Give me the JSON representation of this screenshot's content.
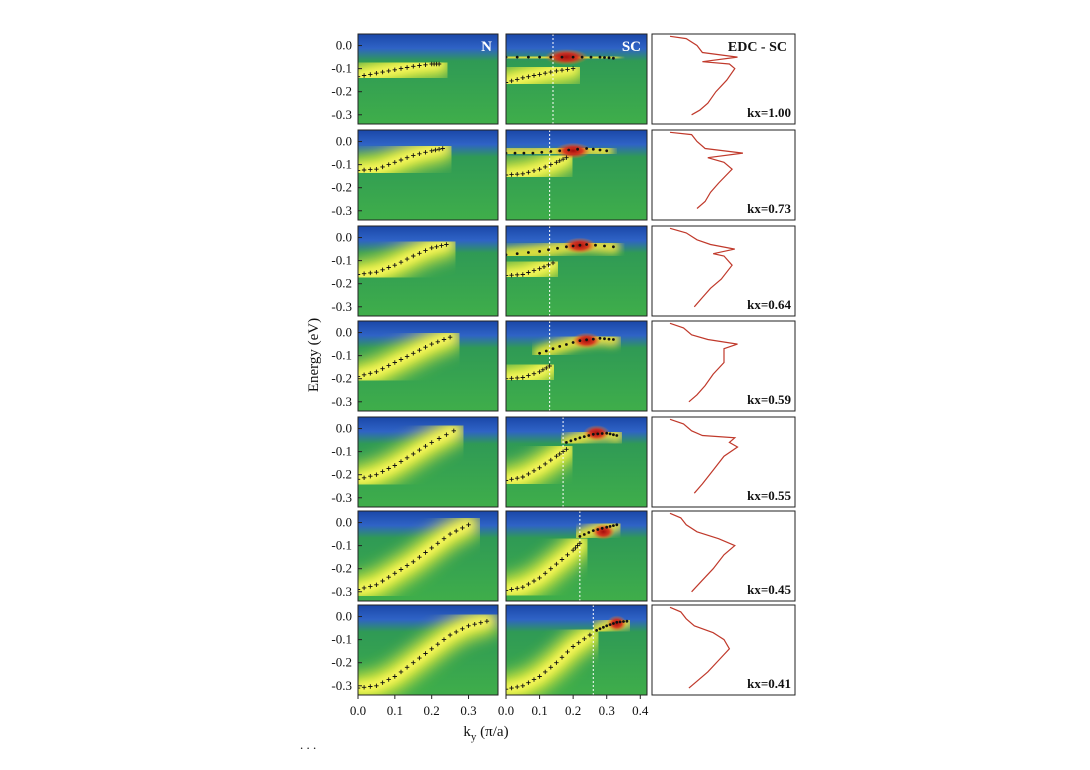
{
  "figure": {
    "ylabel": "Energy (eV)",
    "xlabel_main": "k",
    "xlabel_sub": "y",
    "xlabel_units": " (π/a)",
    "footnote": ". . ."
  },
  "colors": {
    "background_blue": "#1f4fb0",
    "mid_green": "#3ea84a",
    "intensity_yellow": "#f4f02c",
    "peak_red": "#c01212",
    "edc_line": "#c0392b",
    "marker": "#111111",
    "cut_line": "#ffffff"
  },
  "chart_data": {
    "type": "heatmap",
    "columns": [
      {
        "tag": "N",
        "xrange": [
          0.0,
          0.38
        ],
        "xticks": [
          "0.0",
          "0.1",
          "0.2",
          "0.3"
        ]
      },
      {
        "tag": "SC",
        "xrange": [
          0.0,
          0.42
        ],
        "xticks": [
          "0.0",
          "0.1",
          "0.2",
          "0.3",
          "0.4"
        ]
      },
      {
        "tag": "EDC - SC"
      }
    ],
    "yrange": [
      -0.34,
      0.05
    ],
    "yticks": [
      "0.0",
      "-0.1",
      "-0.2",
      "-0.3"
    ],
    "rows": [
      {
        "kx": "kx=1.00",
        "n_dispersion": [
          [
            0.0,
            -0.135
          ],
          [
            0.05,
            -0.12
          ],
          [
            0.1,
            -0.105
          ],
          [
            0.15,
            -0.09
          ],
          [
            0.2,
            -0.08
          ],
          [
            0.22,
            -0.08
          ]
        ],
        "sc_upper": [
          [
            0.0,
            -0.05
          ],
          [
            0.1,
            -0.05
          ],
          [
            0.2,
            -0.05
          ],
          [
            0.28,
            -0.05
          ],
          [
            0.32,
            -0.055
          ]
        ],
        "sc_lower": [
          [
            0.0,
            -0.16
          ],
          [
            0.05,
            -0.14
          ],
          [
            0.1,
            -0.125
          ],
          [
            0.15,
            -0.11
          ],
          [
            0.2,
            -0.1
          ]
        ],
        "cut_ky": 0.14,
        "peak": [
          0.18,
          -0.05,
          0.13
        ],
        "edc": [
          [
            0.0,
            0.04
          ],
          [
            0.06,
            0.03
          ],
          [
            0.1,
            0.0
          ],
          [
            0.12,
            -0.03
          ],
          [
            0.25,
            -0.05
          ],
          [
            0.12,
            -0.07
          ],
          [
            0.22,
            -0.08
          ],
          [
            0.24,
            -0.1
          ],
          [
            0.21,
            -0.15
          ],
          [
            0.17,
            -0.2
          ],
          [
            0.14,
            -0.25
          ],
          [
            0.11,
            -0.28
          ],
          [
            0.08,
            -0.3
          ]
        ]
      },
      {
        "kx": "kx=0.73",
        "n_dispersion": [
          [
            0.0,
            -0.125
          ],
          [
            0.05,
            -0.12
          ],
          [
            0.1,
            -0.09
          ],
          [
            0.15,
            -0.06
          ],
          [
            0.2,
            -0.04
          ],
          [
            0.23,
            -0.03
          ]
        ],
        "sc_upper": [
          [
            0.0,
            -0.05
          ],
          [
            0.08,
            -0.05
          ],
          [
            0.16,
            -0.04
          ],
          [
            0.24,
            -0.03
          ],
          [
            0.3,
            -0.04
          ]
        ],
        "sc_lower": [
          [
            0.0,
            -0.145
          ],
          [
            0.05,
            -0.14
          ],
          [
            0.1,
            -0.12
          ],
          [
            0.15,
            -0.09
          ],
          [
            0.18,
            -0.07
          ]
        ],
        "cut_ky": 0.13,
        "peak": [
          0.2,
          -0.04,
          0.11
        ],
        "edc": [
          [
            0.0,
            0.04
          ],
          [
            0.08,
            0.03
          ],
          [
            0.1,
            0.0
          ],
          [
            0.13,
            -0.03
          ],
          [
            0.27,
            -0.05
          ],
          [
            0.14,
            -0.07
          ],
          [
            0.2,
            -0.09
          ],
          [
            0.23,
            -0.12
          ],
          [
            0.18,
            -0.18
          ],
          [
            0.15,
            -0.22
          ],
          [
            0.13,
            -0.26
          ],
          [
            0.1,
            -0.29
          ]
        ]
      },
      {
        "kx": "kx=0.64",
        "n_dispersion": [
          [
            0.0,
            -0.16
          ],
          [
            0.05,
            -0.15
          ],
          [
            0.1,
            -0.12
          ],
          [
            0.15,
            -0.08
          ],
          [
            0.2,
            -0.045
          ],
          [
            0.24,
            -0.03
          ]
        ],
        "sc_upper": [
          [
            0.0,
            -0.075
          ],
          [
            0.1,
            -0.06
          ],
          [
            0.18,
            -0.04
          ],
          [
            0.24,
            -0.03
          ],
          [
            0.32,
            -0.04
          ]
        ],
        "sc_lower": [
          [
            0.0,
            -0.165
          ],
          [
            0.05,
            -0.16
          ],
          [
            0.1,
            -0.135
          ],
          [
            0.14,
            -0.11
          ]
        ],
        "cut_ky": 0.13,
        "peak": [
          0.22,
          -0.035,
          0.1
        ],
        "edc": [
          [
            0.0,
            0.04
          ],
          [
            0.06,
            0.02
          ],
          [
            0.1,
            -0.01
          ],
          [
            0.15,
            -0.03
          ],
          [
            0.24,
            -0.05
          ],
          [
            0.16,
            -0.07
          ],
          [
            0.2,
            -0.08
          ],
          [
            0.23,
            -0.12
          ],
          [
            0.19,
            -0.18
          ],
          [
            0.15,
            -0.22
          ],
          [
            0.12,
            -0.26
          ],
          [
            0.09,
            -0.3
          ]
        ]
      },
      {
        "kx": "kx=0.59",
        "n_dispersion": [
          [
            0.0,
            -0.19
          ],
          [
            0.05,
            -0.17
          ],
          [
            0.1,
            -0.13
          ],
          [
            0.15,
            -0.09
          ],
          [
            0.2,
            -0.05
          ],
          [
            0.25,
            -0.02
          ]
        ],
        "sc_upper": [
          [
            0.1,
            -0.09
          ],
          [
            0.16,
            -0.06
          ],
          [
            0.22,
            -0.035
          ],
          [
            0.28,
            -0.025
          ],
          [
            0.32,
            -0.03
          ]
        ],
        "sc_lower": [
          [
            0.0,
            -0.2
          ],
          [
            0.05,
            -0.195
          ],
          [
            0.1,
            -0.17
          ],
          [
            0.13,
            -0.145
          ]
        ],
        "cut_ky": 0.13,
        "peak": [
          0.24,
          -0.035,
          0.09
        ],
        "edc": [
          [
            0.0,
            0.04
          ],
          [
            0.05,
            0.02
          ],
          [
            0.08,
            -0.01
          ],
          [
            0.14,
            -0.03
          ],
          [
            0.25,
            -0.05
          ],
          [
            0.2,
            -0.07
          ],
          [
            0.2,
            -0.1
          ],
          [
            0.2,
            -0.13
          ],
          [
            0.16,
            -0.18
          ],
          [
            0.13,
            -0.23
          ],
          [
            0.1,
            -0.27
          ],
          [
            0.07,
            -0.3
          ]
        ]
      },
      {
        "kx": "kx=0.55",
        "n_dispersion": [
          [
            0.0,
            -0.22
          ],
          [
            0.05,
            -0.2
          ],
          [
            0.1,
            -0.16
          ],
          [
            0.15,
            -0.11
          ],
          [
            0.2,
            -0.06
          ],
          [
            0.26,
            -0.01
          ]
        ],
        "sc_upper": [
          [
            0.18,
            -0.06
          ],
          [
            0.22,
            -0.04
          ],
          [
            0.26,
            -0.025
          ],
          [
            0.3,
            -0.02
          ],
          [
            0.33,
            -0.03
          ]
        ],
        "sc_lower": [
          [
            0.0,
            -0.225
          ],
          [
            0.05,
            -0.21
          ],
          [
            0.1,
            -0.17
          ],
          [
            0.15,
            -0.12
          ],
          [
            0.18,
            -0.09
          ]
        ],
        "cut_ky": 0.17,
        "peak": [
          0.27,
          -0.02,
          0.08
        ],
        "edc": [
          [
            0.0,
            0.04
          ],
          [
            0.05,
            0.02
          ],
          [
            0.08,
            -0.01
          ],
          [
            0.12,
            -0.03
          ],
          [
            0.24,
            -0.04
          ],
          [
            0.22,
            -0.06
          ],
          [
            0.25,
            -0.08
          ],
          [
            0.2,
            -0.12
          ],
          [
            0.16,
            -0.18
          ],
          [
            0.12,
            -0.24
          ],
          [
            0.09,
            -0.28
          ]
        ]
      },
      {
        "kx": "kx=0.45",
        "n_dispersion": [
          [
            0.0,
            -0.29
          ],
          [
            0.05,
            -0.27
          ],
          [
            0.1,
            -0.22
          ],
          [
            0.15,
            -0.17
          ],
          [
            0.2,
            -0.11
          ],
          [
            0.25,
            -0.05
          ],
          [
            0.3,
            -0.01
          ]
        ],
        "sc_upper": [
          [
            0.22,
            -0.06
          ],
          [
            0.26,
            -0.035
          ],
          [
            0.3,
            -0.02
          ],
          [
            0.33,
            -0.01
          ]
        ],
        "sc_lower": [
          [
            0.0,
            -0.295
          ],
          [
            0.05,
            -0.28
          ],
          [
            0.1,
            -0.24
          ],
          [
            0.15,
            -0.18
          ],
          [
            0.2,
            -0.12
          ],
          [
            0.22,
            -0.09
          ]
        ],
        "cut_ky": 0.22,
        "peak": [
          0.29,
          -0.04,
          0.07
        ],
        "edc": [
          [
            0.0,
            0.04
          ],
          [
            0.04,
            0.02
          ],
          [
            0.06,
            -0.01
          ],
          [
            0.1,
            -0.04
          ],
          [
            0.18,
            -0.07
          ],
          [
            0.24,
            -0.1
          ],
          [
            0.2,
            -0.14
          ],
          [
            0.16,
            -0.2
          ],
          [
            0.12,
            -0.25
          ],
          [
            0.08,
            -0.3
          ]
        ]
      },
      {
        "kx": "kx=0.41",
        "n_dispersion": [
          [
            0.0,
            -0.31
          ],
          [
            0.05,
            -0.3
          ],
          [
            0.1,
            -0.26
          ],
          [
            0.15,
            -0.2
          ],
          [
            0.2,
            -0.14
          ],
          [
            0.25,
            -0.08
          ],
          [
            0.3,
            -0.04
          ],
          [
            0.35,
            -0.02
          ]
        ],
        "sc_upper": [
          [
            0.27,
            -0.06
          ],
          [
            0.3,
            -0.04
          ],
          [
            0.33,
            -0.025
          ],
          [
            0.36,
            -0.02
          ]
        ],
        "sc_lower": [
          [
            0.0,
            -0.315
          ],
          [
            0.05,
            -0.3
          ],
          [
            0.1,
            -0.26
          ],
          [
            0.15,
            -0.2
          ],
          [
            0.2,
            -0.13
          ],
          [
            0.25,
            -0.08
          ]
        ],
        "cut_ky": 0.26,
        "peak": [
          0.33,
          -0.03,
          0.06
        ],
        "edc": [
          [
            0.0,
            0.04
          ],
          [
            0.04,
            0.02
          ],
          [
            0.06,
            -0.01
          ],
          [
            0.09,
            -0.04
          ],
          [
            0.16,
            -0.07
          ],
          [
            0.2,
            -0.1
          ],
          [
            0.22,
            -0.14
          ],
          [
            0.18,
            -0.19
          ],
          [
            0.14,
            -0.24
          ],
          [
            0.1,
            -0.28
          ],
          [
            0.07,
            -0.31
          ]
        ]
      }
    ]
  }
}
